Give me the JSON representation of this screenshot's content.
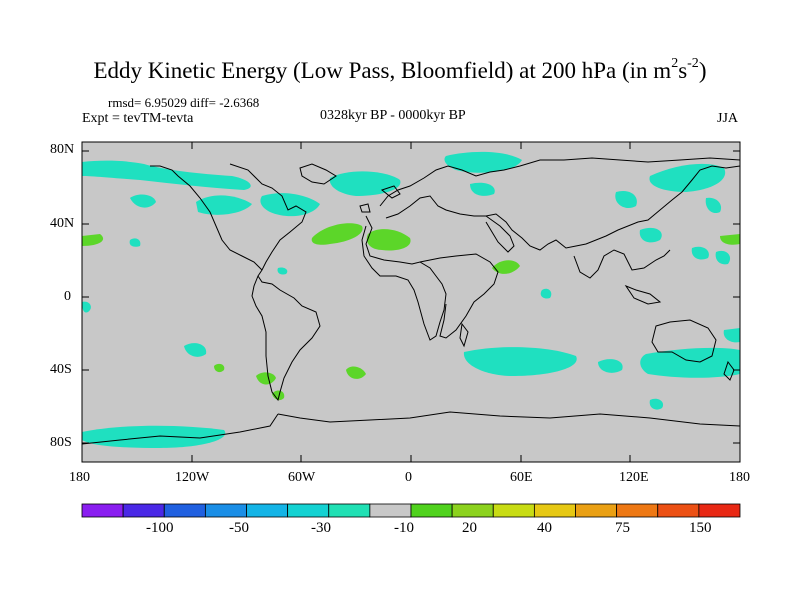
{
  "title": {
    "main": "Eddy Kinetic Energy (Low Pass, Bloomfield) at 200 hPa (in m",
    "sup1": "2",
    "mid": "s",
    "sup2": "-2",
    "end": ")"
  },
  "stats": "rmsd= 6.95029 diff= -2.6368",
  "experiment": "Expt = tevTM-tevta",
  "period": "0328kyr BP - 0000kyr BP",
  "season": "JJA",
  "lat_labels": [
    "80N",
    "40N",
    "0",
    "40S",
    "80S"
  ],
  "lon_labels": [
    "180",
    "120W",
    "60W",
    "0",
    "60E",
    "120E",
    "180"
  ],
  "colorbar": {
    "colors": [
      "#8a1ef0",
      "#4a28e6",
      "#2060e0",
      "#1a8ee6",
      "#14b4e6",
      "#14d2d2",
      "#20e0b4",
      "#c8c8c8",
      "#50d21e",
      "#8cd21e",
      "#c8dc14",
      "#e6c814",
      "#eaa014",
      "#ee7814",
      "#ec5014",
      "#e82814"
    ],
    "labels": [
      "-100",
      "-50",
      "-30",
      "-10",
      "20",
      "40",
      "75",
      "150"
    ]
  }
}
